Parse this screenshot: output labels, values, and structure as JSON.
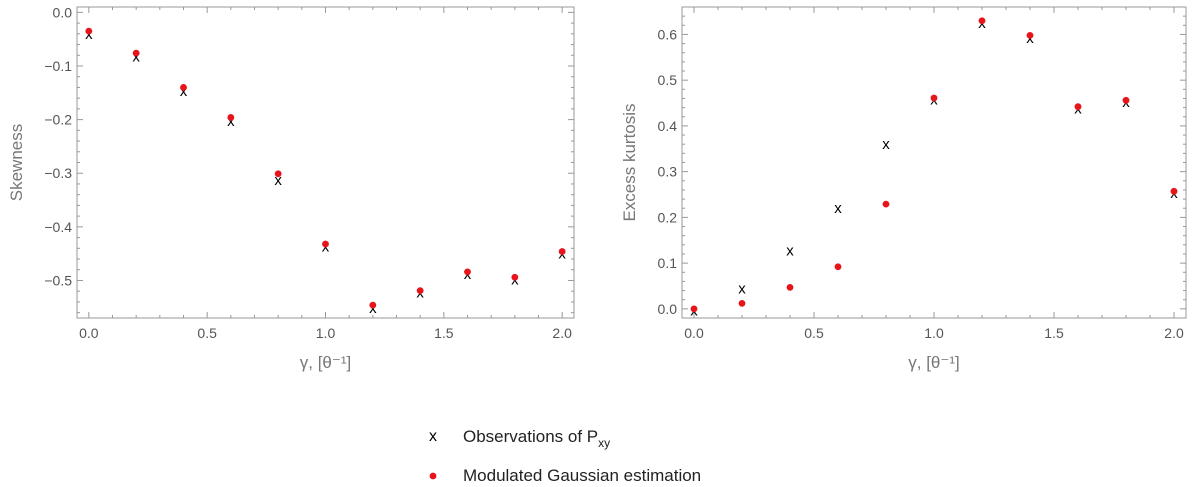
{
  "chart_data": [
    {
      "type": "scatter",
      "xlabel": "γ, [θ⁻¹]",
      "ylabel": "Skewness",
      "xlim": [
        -0.05,
        2.05
      ],
      "ylim": [
        -0.57,
        0.01
      ],
      "x_ticks": [
        "0.0",
        "0.5",
        "1.0",
        "1.5",
        "2.0"
      ],
      "y_ticks": [
        "0.0",
        "-0.1",
        "-0.2",
        "-0.3",
        "-0.4",
        "-0.5"
      ],
      "x": [
        0.0,
        0.2,
        0.4,
        0.6,
        0.8,
        1.0,
        1.2,
        1.4,
        1.6,
        1.8,
        2.0
      ],
      "series": [
        {
          "name": "Observations of P_xy",
          "marker": "x",
          "color": "#000000",
          "values": [
            -0.04,
            -0.082,
            -0.147,
            -0.203,
            -0.313,
            -0.437,
            -0.551,
            -0.522,
            -0.488,
            -0.498,
            -0.45
          ]
        },
        {
          "name": "Modulated Gaussian estimation",
          "marker": "dot",
          "color": "#e8141b",
          "values": [
            -0.035,
            -0.076,
            -0.14,
            -0.196,
            -0.301,
            -0.432,
            -0.546,
            -0.519,
            -0.484,
            -0.494,
            -0.446
          ]
        }
      ],
      "grid": false
    },
    {
      "type": "scatter",
      "xlabel": "γ, [θ⁻¹]",
      "ylabel": "Excess kurtosis",
      "xlim": [
        -0.05,
        2.05
      ],
      "ylim": [
        -0.02,
        0.66
      ],
      "x_ticks": [
        "0.0",
        "0.5",
        "1.0",
        "1.5",
        "2.0"
      ],
      "y_ticks": [
        "0.0",
        "0.1",
        "0.2",
        "0.3",
        "0.4",
        "0.5",
        "0.6"
      ],
      "x": [
        0.0,
        0.2,
        0.4,
        0.6,
        0.8,
        1.0,
        1.2,
        1.4,
        1.6,
        1.8,
        2.0
      ],
      "series": [
        {
          "name": "Observations of P_xy",
          "marker": "x",
          "color": "#000000",
          "values": [
            -0.004,
            0.045,
            0.128,
            0.22,
            0.36,
            0.458,
            0.625,
            0.592,
            0.438,
            0.452,
            0.253
          ]
        },
        {
          "name": "Modulated Gaussian estimation",
          "marker": "dot",
          "color": "#e8141b",
          "values": [
            0.0,
            0.012,
            0.047,
            0.092,
            0.229,
            0.461,
            0.63,
            0.598,
            0.442,
            0.456,
            0.257
          ]
        }
      ],
      "grid": false
    }
  ],
  "legend": {
    "placement": "bottom-center",
    "items": [
      {
        "label": "Observations of P",
        "subscript": "xy",
        "marker": "x",
        "marker_glyph": "x"
      },
      {
        "label": "Modulated Gaussian estimation",
        "marker": "dot"
      }
    ]
  },
  "colors": {
    "frame": "#999999",
    "tick_text": "#555555",
    "axis_title": "#777777",
    "observation": "#000000",
    "estimation": "#e8141b"
  }
}
